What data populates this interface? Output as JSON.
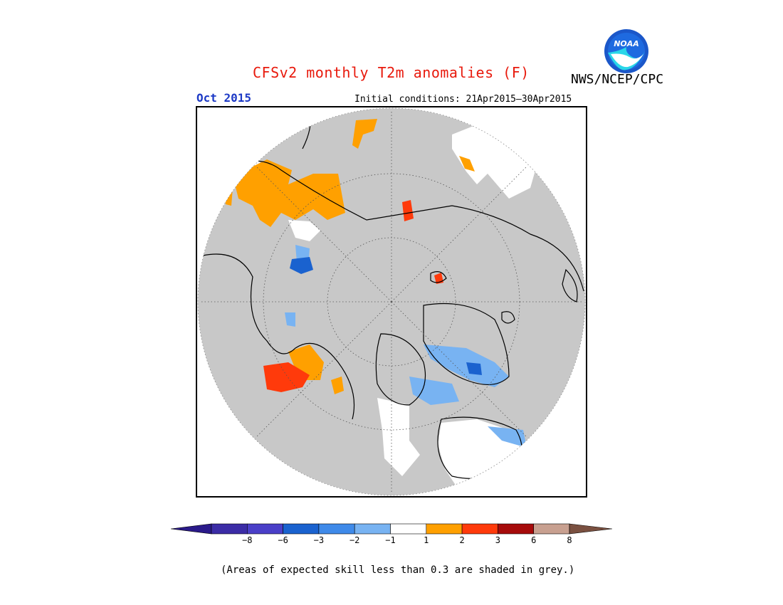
{
  "title": "CFSv2 monthly T2m anomalies (F)",
  "agency": "NWS/NCEP/CPC",
  "logo_text": "NOAA",
  "valid_month": "Oct 2015",
  "initial_conditions": "Initial conditions: 21Apr2015–30Apr2015",
  "footnote": "(Areas of expected skill less than 0.3 are shaded in grey.)",
  "colors": {
    "title": "#e8190c",
    "month": "#1c39c6",
    "low_skill_grey": "#c8c8c8",
    "neutral_white": "#ffffff"
  },
  "colorbar": {
    "tick_labels": [
      "−8",
      "−6",
      "−3",
      "−2",
      "−1",
      "1",
      "2",
      "3",
      "6",
      "8"
    ],
    "bins": [
      {
        "color": "#3b2ca6"
      },
      {
        "color": "#4a3fc8"
      },
      {
        "color": "#1a62cf"
      },
      {
        "color": "#3f8ae9"
      },
      {
        "color": "#78b3f2"
      },
      {
        "color": "#ffffff"
      },
      {
        "color": "#ffa000"
      },
      {
        "color": "#ff3a0b"
      },
      {
        "color": "#a60b0b"
      },
      {
        "color": "#c8a090"
      }
    ],
    "low_arrow_color": "#2a1a8a",
    "high_arrow_color": "#7a5040"
  }
}
